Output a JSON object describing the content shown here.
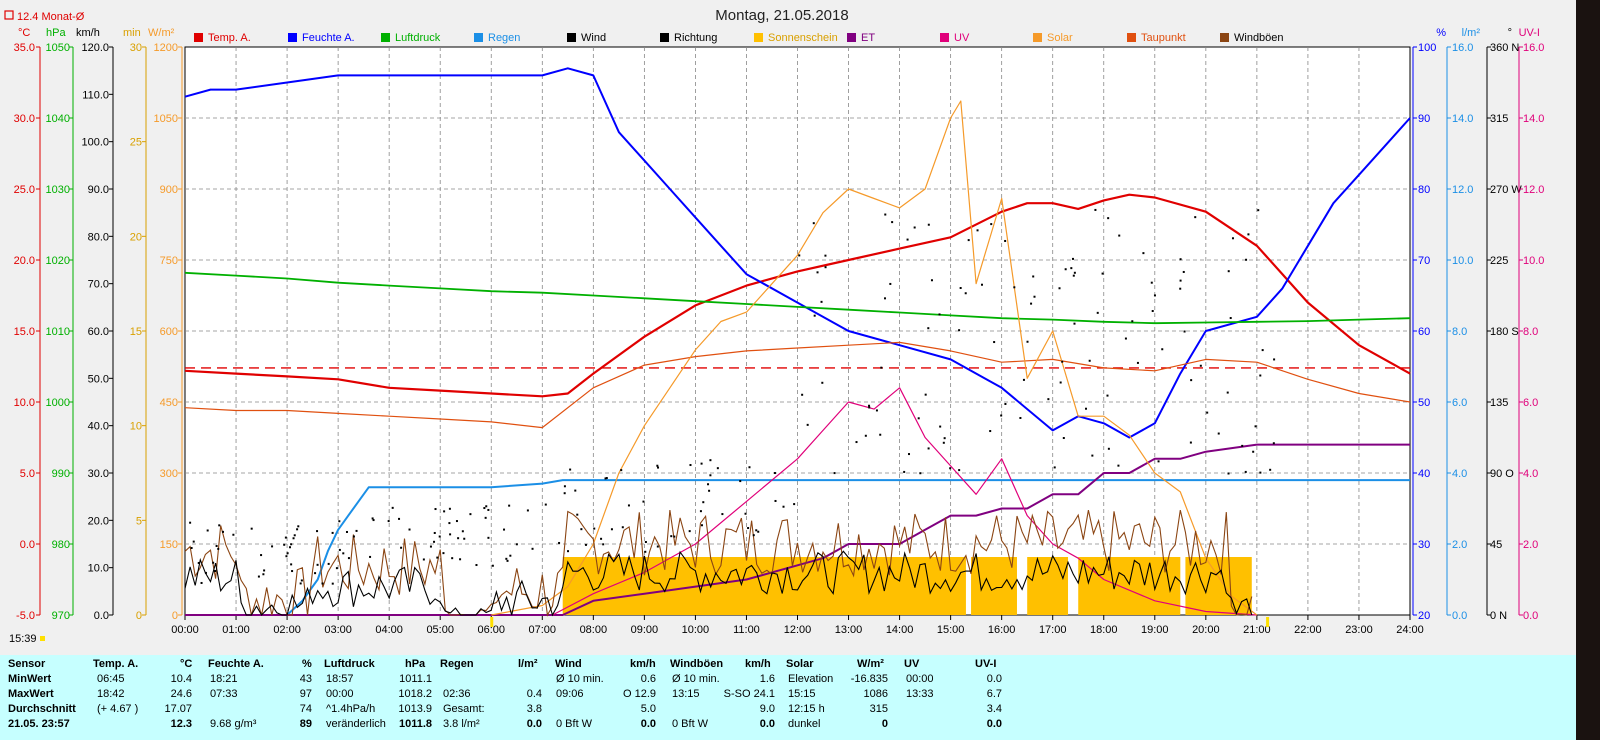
{
  "title": "Montag, 21.05.2018",
  "top_left_label": "12.4 Monat-Ø",
  "axis_units": {
    "temp": "°C",
    "pressure": "hPa",
    "wind": "km/h",
    "sun_min": "min",
    "solar": "W/m²",
    "humidity": "%",
    "rain": "l/m²",
    "direction": "°",
    "uv": "UV-I"
  },
  "colors": {
    "temp": "#e00000",
    "humidity": "#0000ff",
    "pressure": "#00b000",
    "rain": "#1b8fe6",
    "wind": "#000000",
    "direction": "#000000",
    "sunshine": "#ffc000",
    "et": "#800080",
    "uv": "#e0007a",
    "solar": "#f59a2a",
    "dewpoint": "#e05010",
    "gusts": "#8b4513"
  },
  "legend": [
    {
      "label": "Temp. A.",
      "color": "#e00000"
    },
    {
      "label": "Feuchte A.",
      "color": "#0000ff"
    },
    {
      "label": "Luftdruck",
      "color": "#00b000"
    },
    {
      "label": "Regen",
      "color": "#1b8fe6"
    },
    {
      "label": "Wind",
      "color": "#000000"
    },
    {
      "label": "Richtung",
      "color": "#000000"
    },
    {
      "label": "Sonnenschein",
      "color": "#ffc000"
    },
    {
      "label": "ET",
      "color": "#800080"
    },
    {
      "label": "UV",
      "color": "#e0007a"
    },
    {
      "label": "Solar",
      "color": "#f59a2a"
    },
    {
      "label": "Taupunkt",
      "color": "#e05010"
    },
    {
      "label": "Windböen",
      "color": "#8b4513"
    }
  ],
  "chart_data": {
    "type": "line",
    "title": "Montag, 21.05.2018",
    "x_ticks": [
      "00:00",
      "01:00",
      "02:00",
      "03:00",
      "04:00",
      "05:00",
      "06:00",
      "07:00",
      "08:00",
      "09:00",
      "10:00",
      "11:00",
      "12:00",
      "13:00",
      "14:00",
      "15:00",
      "16:00",
      "17:00",
      "18:00",
      "19:00",
      "20:00",
      "21:00",
      "22:00",
      "23:00",
      "24:00"
    ],
    "xlim_hours": [
      0,
      24
    ],
    "left_axes": {
      "temp": {
        "ticks": [
          "35.0",
          "30.0",
          "25.0",
          "20.0",
          "15.0",
          "10.0",
          "5.0",
          "0.0",
          "-5.0"
        ],
        "range": [
          -5,
          35
        ]
      },
      "pressure": {
        "ticks": [
          "1050",
          "1040",
          "1030",
          "1020",
          "1010",
          "1000",
          "990",
          "980",
          "970"
        ],
        "range": [
          970,
          1050
        ]
      },
      "wind": {
        "ticks": [
          "120.0",
          "110.0",
          "100.0",
          "90.0",
          "80.0",
          "70.0",
          "60.0",
          "50.0",
          "40.0",
          "30.0",
          "20.0",
          "10.0",
          "0.0"
        ],
        "range": [
          0,
          120
        ]
      },
      "sun_min": {
        "ticks": [
          "30",
          "25",
          "20",
          "15",
          "10",
          "5",
          "0"
        ],
        "range": [
          0,
          30
        ]
      },
      "solar": {
        "ticks": [
          "1200",
          "1050",
          "900",
          "750",
          "600",
          "450",
          "300",
          "150",
          "0"
        ],
        "range": [
          0,
          1200
        ]
      }
    },
    "right_axes": {
      "humidity": {
        "ticks": [
          "100",
          "90",
          "80",
          "70",
          "60",
          "50",
          "40",
          "30",
          "20"
        ],
        "range": [
          20,
          100
        ]
      },
      "rain": {
        "ticks": [
          "16.0",
          "14.0",
          "12.0",
          "10.0",
          "8.0",
          "6.0",
          "4.0",
          "2.0",
          "0.0"
        ],
        "range": [
          0,
          16
        ]
      },
      "direction": {
        "ticks": [
          "360 N",
          "315",
          "270 W",
          "225",
          "180 S",
          "135",
          "90 O",
          "45",
          "0 N"
        ],
        "range": [
          0,
          360
        ]
      },
      "uv": {
        "ticks": [
          "16.0",
          "14.0",
          "12.0",
          "10.0",
          "8.0",
          "6.0",
          "4.0",
          "2.0",
          "0.0"
        ],
        "range": [
          0,
          16
        ]
      }
    },
    "month_avg_temp": 12.4,
    "series": [
      {
        "name": "Temp. A.",
        "axis": "temp",
        "x": [
          0,
          1,
          2,
          3,
          4,
          5,
          6,
          7,
          7.5,
          8,
          9,
          10,
          11,
          12,
          13,
          14,
          15,
          16,
          16.5,
          17,
          17.5,
          18,
          18.5,
          19,
          20,
          21,
          22,
          23,
          24
        ],
        "y": [
          12.2,
          12.0,
          11.8,
          11.6,
          11.0,
          10.8,
          10.6,
          10.4,
          10.6,
          12.0,
          14.6,
          16.8,
          18.2,
          19.2,
          20.0,
          20.8,
          21.6,
          23.4,
          24.0,
          24.0,
          23.6,
          24.2,
          24.6,
          24.4,
          23.4,
          21.0,
          17.0,
          14.0,
          12.0
        ]
      },
      {
        "name": "Feuchte A.",
        "axis": "humidity",
        "x": [
          0,
          0.5,
          1,
          2,
          3,
          4,
          5,
          6,
          7,
          7.5,
          8,
          8.5,
          9,
          9.5,
          10,
          10.5,
          11,
          12,
          13,
          14,
          15,
          16,
          17,
          17.5,
          18,
          18.5,
          19,
          19.5,
          20,
          21,
          21.5,
          22,
          22.5,
          23,
          23.5,
          24
        ],
        "y": [
          93,
          94,
          94,
          95,
          96,
          96,
          96,
          96,
          96,
          97,
          96,
          88,
          84,
          80,
          76,
          72,
          68,
          64,
          60,
          58,
          56,
          52,
          46,
          48,
          47,
          45,
          47,
          54,
          60,
          62,
          66,
          72,
          78,
          82,
          86,
          90
        ]
      },
      {
        "name": "Luftdruck",
        "axis": "pressure",
        "x": [
          0,
          1,
          2,
          3,
          4,
          5,
          6,
          7,
          8,
          9,
          10,
          11,
          12,
          13,
          14,
          15,
          16,
          17,
          18,
          19,
          20,
          21,
          22,
          23,
          24
        ],
        "y": [
          1018.2,
          1017.8,
          1017.4,
          1016.8,
          1016.4,
          1016.0,
          1015.6,
          1015.4,
          1015.0,
          1014.6,
          1014.2,
          1013.8,
          1013.4,
          1013.0,
          1012.6,
          1012.2,
          1011.8,
          1011.6,
          1011.3,
          1011.1,
          1011.2,
          1011.3,
          1011.4,
          1011.6,
          1011.8
        ]
      },
      {
        "name": "Regen",
        "axis": "rain",
        "x": [
          0,
          2,
          2.3,
          2.6,
          2.8,
          3.0,
          3.2,
          3.4,
          3.6,
          4,
          5,
          6,
          7,
          7.4,
          8,
          24
        ],
        "y": [
          0,
          0,
          0.4,
          1.0,
          1.8,
          2.4,
          2.8,
          3.2,
          3.6,
          3.6,
          3.6,
          3.6,
          3.7,
          3.8,
          3.8,
          3.8
        ]
      },
      {
        "name": "Taupunkt",
        "axis": "temp",
        "x": [
          0,
          1,
          2,
          3,
          4,
          5,
          6,
          7,
          8,
          9,
          10,
          11,
          12,
          13,
          14,
          15,
          16,
          17,
          18,
          19,
          20,
          21,
          22,
          23,
          24
        ],
        "y": [
          9.6,
          9.4,
          9.4,
          9.2,
          9.0,
          8.8,
          8.6,
          8.2,
          11.0,
          12.6,
          13.2,
          13.6,
          13.8,
          14.0,
          14.2,
          13.6,
          12.8,
          13.0,
          12.4,
          12.2,
          13.0,
          12.8,
          11.6,
          10.6,
          10.0
        ]
      },
      {
        "name": "ET",
        "axis": "rain",
        "x": [
          0,
          7.4,
          8,
          9,
          10,
          11,
          12,
          12.5,
          13,
          14,
          14.5,
          15,
          15.5,
          16,
          16.5,
          17,
          17.5,
          18,
          18.5,
          19,
          19.5,
          20,
          21,
          22,
          24
        ],
        "y": [
          0,
          0,
          0.4,
          0.6,
          0.8,
          1.0,
          1.4,
          1.6,
          2.0,
          2.0,
          2.4,
          2.8,
          2.8,
          3.0,
          3.0,
          3.4,
          3.4,
          4.0,
          4.0,
          4.4,
          4.4,
          4.6,
          4.8,
          4.8,
          4.8
        ]
      },
      {
        "name": "UV",
        "axis": "uv",
        "x": [
          7.2,
          8,
          9,
          10,
          11,
          12,
          12.5,
          13,
          13.5,
          14,
          14.5,
          15,
          15.5,
          16,
          16.5,
          17,
          17.5,
          18,
          19,
          20,
          21
        ],
        "y": [
          0,
          0.6,
          1.2,
          2.0,
          3.2,
          4.4,
          5.2,
          6.0,
          5.8,
          6.4,
          5.0,
          4.2,
          3.4,
          4.4,
          2.8,
          2.0,
          1.6,
          1.0,
          0.4,
          0.1,
          0
        ]
      },
      {
        "name": "Solar",
        "axis": "solar",
        "x": [
          6,
          7,
          7.5,
          8,
          8.5,
          9,
          9.5,
          10,
          10.5,
          11,
          11.5,
          12,
          12.5,
          13,
          13.5,
          14,
          14.5,
          15,
          15.2,
          15.5,
          16,
          16.5,
          17,
          17.5,
          18,
          18.5,
          19,
          19.5,
          20,
          20.5,
          21
        ],
        "y": [
          0,
          20,
          60,
          150,
          300,
          400,
          480,
          560,
          620,
          640,
          700,
          760,
          850,
          900,
          880,
          860,
          900,
          1050,
          1086,
          700,
          880,
          500,
          600,
          420,
          420,
          380,
          300,
          260,
          120,
          40,
          0
        ]
      },
      {
        "name": "Sonnenschein",
        "axis": "sun_min",
        "x": [
          7.4,
          19.5,
          19.6,
          21
        ],
        "y": [
          10,
          10,
          10,
          10
        ]
      }
    ],
    "sunshine_blocks_hours": [
      [
        7.4,
        15.3
      ],
      [
        15.4,
        16.3
      ],
      [
        16.5,
        17.3
      ],
      [
        17.5,
        19.5
      ],
      [
        19.6,
        20.9
      ]
    ]
  },
  "clock": "15:39",
  "stats": {
    "headers": {
      "sensor": "Sensor",
      "temp": "Temp. A.",
      "temp_u": "°C",
      "hum": "Feuchte A.",
      "hum_u": "%",
      "press": "Luftdruck",
      "press_u": "hPa",
      "rain": "Regen",
      "rain_u": "l/m²",
      "wind": "Wind",
      "wind_u": "km/h",
      "gust": "Windböen",
      "gust_u": "km/h",
      "solar": "Solar",
      "solar_u": "W/m²",
      "uv": "UV",
      "uv_u": "UV-I"
    },
    "rows": [
      {
        "label": "MinWert",
        "temp_t": "06:45",
        "temp_v": "10.4",
        "hum_t": "18:21",
        "hum_v": "43",
        "press_t": "18:57",
        "press_v": "1011.1",
        "rain_t": "",
        "rain_v": "",
        "wind_t": "Ø 10 min.",
        "wind_v": "0.6",
        "gust_t": "Ø 10 min.",
        "gust_v": "1.6",
        "solar_t": "Elevation",
        "solar_v": "-16.835",
        "uv_t": "00:00",
        "uv_v": "0.0"
      },
      {
        "label": "MaxWert",
        "temp_t": "18:42",
        "temp_v": "24.6",
        "hum_t": "07:33",
        "hum_v": "97",
        "press_t": "00:00",
        "press_v": "1018.2",
        "rain_t": "02:36",
        "rain_v": "0.4",
        "wind_t": "09:06",
        "wind_v": "O 12.9",
        "gust_t": "13:15",
        "gust_v": "S-SO 24.1",
        "solar_t": "15:15",
        "solar_v": "1086",
        "uv_t": "13:33",
        "uv_v": "6.7"
      },
      {
        "label": "Durchschnitt",
        "temp_t": "(+ 4.67 )",
        "temp_v": "17.07",
        "hum_t": "",
        "hum_v": "74",
        "press_t": "^1.4hPa/h",
        "press_v": "1013.9",
        "rain_t": "Gesamt:",
        "rain_v": "3.8",
        "wind_t": "",
        "wind_v": "5.0",
        "gust_t": "",
        "gust_v": "9.0",
        "solar_t": "12:15 h",
        "solar_v": "315",
        "uv_t": "",
        "uv_v": "3.4"
      },
      {
        "label": "21.05. 23:57",
        "temp_t": "",
        "temp_v": "12.3",
        "hum_t": "9.68 g/m³",
        "hum_v": "89",
        "press_t": "veränderlich",
        "press_v": "1011.8",
        "rain_t": "3.8 l/m²",
        "rain_v": "0.0",
        "wind_t": "0 Bft W",
        "wind_v": "0.0",
        "gust_t": "0 Bft W",
        "gust_v": "0.0",
        "solar_t": "dunkel",
        "solar_v": "0",
        "uv_t": "",
        "uv_v": "0.0"
      }
    ]
  }
}
